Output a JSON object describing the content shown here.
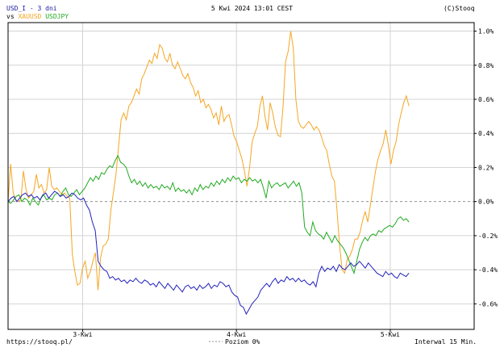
{
  "header": {
    "symbol": "USD_I - 3 dni",
    "vs_prefix": "vs",
    "compare1": "XAUUSD",
    "compare2": "USDJPY",
    "datetime": "5 Kwi 2024 13:01 CEST",
    "copyright": "(C)Stooq"
  },
  "footer": {
    "url": "https://stooq.pl/",
    "baseline_legend": "Poziom 0%",
    "interval": "Interwal 15 Min."
  },
  "colors": {
    "usd_i": "#2222bb",
    "xauusd": "#f5a623",
    "usdjpy": "#22aa22",
    "grid": "#d4d4d4",
    "baseline": "#909090"
  },
  "chart_data": {
    "type": "line",
    "xlabel": "",
    "ylabel": "",
    "x_ticks": [
      "3-Kwi",
      "4-Kwi",
      "5-Kwi"
    ],
    "y_ticks": [
      "1.0%",
      "0.8%",
      "0.6%",
      "0.4%",
      "0.2%",
      "0.0%",
      "-0.2%",
      "-0.4%",
      "-0.6%"
    ],
    "ylim": [
      -0.75,
      1.05
    ],
    "grid": true,
    "series": [
      {
        "name": "XAUUSD",
        "color": "#f5a623",
        "values": [
          0.0,
          0.22,
          0.05,
          0.01,
          0.0,
          0.01,
          0.18,
          0.07,
          0.02,
          0.04,
          0.06,
          0.16,
          0.08,
          0.1,
          0.05,
          0.07,
          0.2,
          0.09,
          0.07,
          0.08,
          0.06,
          0.04,
          0.05,
          0.03,
          0.02,
          -0.31,
          -0.41,
          -0.49,
          -0.48,
          -0.39,
          -0.35,
          -0.45,
          -0.41,
          -0.35,
          -0.3,
          -0.52,
          -0.33,
          -0.26,
          -0.25,
          -0.22,
          -0.05,
          0.05,
          0.16,
          0.32,
          0.48,
          0.52,
          0.48,
          0.56,
          0.58,
          0.62,
          0.66,
          0.63,
          0.72,
          0.75,
          0.79,
          0.83,
          0.81,
          0.87,
          0.84,
          0.92,
          0.9,
          0.84,
          0.82,
          0.87,
          0.8,
          0.78,
          0.82,
          0.78,
          0.74,
          0.72,
          0.75,
          0.7,
          0.67,
          0.62,
          0.65,
          0.58,
          0.6,
          0.55,
          0.57,
          0.54,
          0.49,
          0.52,
          0.45,
          0.56,
          0.47,
          0.5,
          0.51,
          0.45,
          0.38,
          0.35,
          0.3,
          0.25,
          0.18,
          0.09,
          0.2,
          0.35,
          0.4,
          0.44,
          0.56,
          0.62,
          0.5,
          0.42,
          0.58,
          0.52,
          0.44,
          0.39,
          0.38,
          0.55,
          0.82,
          0.88,
          1.0,
          0.9,
          0.6,
          0.47,
          0.44,
          0.43,
          0.45,
          0.47,
          0.45,
          0.42,
          0.44,
          0.42,
          0.38,
          0.33,
          0.3,
          0.22,
          0.15,
          0.12,
          -0.05,
          -0.25,
          -0.4,
          -0.42,
          -0.34,
          -0.32,
          -0.28,
          -0.22,
          -0.22,
          -0.18,
          -0.11,
          -0.06,
          -0.12,
          -0.02,
          0.08,
          0.18,
          0.25,
          0.3,
          0.34,
          0.42,
          0.33,
          0.22,
          0.3,
          0.35,
          0.45,
          0.52,
          0.58,
          0.62,
          0.56
        ]
      },
      {
        "name": "USDJPY",
        "color": "#22aa22",
        "values": [
          0.0,
          -0.01,
          0.01,
          0.03,
          0.04,
          0.0,
          0.02,
          0.01,
          -0.02,
          0.02,
          0.0,
          -0.02,
          0.02,
          0.04,
          0.01,
          0.02,
          0.01,
          0.04,
          0.05,
          0.03,
          0.06,
          0.08,
          0.04,
          0.03,
          0.05,
          0.07,
          0.04,
          0.06,
          0.08,
          0.11,
          0.14,
          0.12,
          0.15,
          0.13,
          0.17,
          0.16,
          0.19,
          0.21,
          0.2,
          0.24,
          0.27,
          0.23,
          0.22,
          0.2,
          0.15,
          0.11,
          0.13,
          0.1,
          0.12,
          0.09,
          0.11,
          0.08,
          0.1,
          0.08,
          0.09,
          0.07,
          0.1,
          0.08,
          0.09,
          0.07,
          0.11,
          0.06,
          0.08,
          0.06,
          0.07,
          0.05,
          0.07,
          0.04,
          0.08,
          0.06,
          0.1,
          0.07,
          0.09,
          0.08,
          0.11,
          0.09,
          0.12,
          0.1,
          0.13,
          0.11,
          0.14,
          0.12,
          0.15,
          0.13,
          0.14,
          0.11,
          0.13,
          0.12,
          0.14,
          0.12,
          0.13,
          0.11,
          0.13,
          0.08,
          0.02,
          0.12,
          0.08,
          0.1,
          0.11,
          0.09,
          0.1,
          0.11,
          0.08,
          0.1,
          0.12,
          0.09,
          0.11,
          0.05,
          -0.15,
          -0.18,
          -0.2,
          -0.12,
          -0.17,
          -0.19,
          -0.2,
          -0.22,
          -0.18,
          -0.21,
          -0.24,
          -0.2,
          -0.23,
          -0.25,
          -0.27,
          -0.3,
          -0.34,
          -0.38,
          -0.42,
          -0.35,
          -0.28,
          -0.24,
          -0.21,
          -0.23,
          -0.2,
          -0.19,
          -0.2,
          -0.17,
          -0.18,
          -0.16,
          -0.15,
          -0.14,
          -0.15,
          -0.13,
          -0.1,
          -0.09,
          -0.11,
          -0.1,
          -0.12
        ]
      },
      {
        "name": "USD_I",
        "color": "#2222bb",
        "values": [
          0.0,
          0.02,
          0.03,
          0.0,
          0.02,
          0.04,
          0.05,
          0.03,
          0.04,
          0.02,
          0.03,
          0.01,
          0.04,
          0.05,
          0.02,
          0.04,
          0.06,
          0.05,
          0.03,
          0.04,
          0.02,
          0.03,
          0.05,
          0.04,
          0.02,
          0.01,
          0.02,
          -0.02,
          -0.05,
          -0.12,
          -0.17,
          -0.35,
          -0.38,
          -0.4,
          -0.41,
          -0.45,
          -0.44,
          -0.46,
          -0.45,
          -0.47,
          -0.46,
          -0.48,
          -0.46,
          -0.47,
          -0.45,
          -0.47,
          -0.48,
          -0.46,
          -0.47,
          -0.49,
          -0.48,
          -0.5,
          -0.47,
          -0.49,
          -0.51,
          -0.48,
          -0.5,
          -0.52,
          -0.49,
          -0.51,
          -0.53,
          -0.5,
          -0.49,
          -0.51,
          -0.5,
          -0.52,
          -0.49,
          -0.51,
          -0.5,
          -0.48,
          -0.51,
          -0.49,
          -0.5,
          -0.47,
          -0.48,
          -0.5,
          -0.49,
          -0.53,
          -0.55,
          -0.56,
          -0.61,
          -0.62,
          -0.66,
          -0.63,
          -0.6,
          -0.58,
          -0.56,
          -0.52,
          -0.5,
          -0.48,
          -0.5,
          -0.47,
          -0.45,
          -0.48,
          -0.46,
          -0.47,
          -0.44,
          -0.46,
          -0.45,
          -0.47,
          -0.45,
          -0.47,
          -0.46,
          -0.48,
          -0.49,
          -0.47,
          -0.5,
          -0.42,
          -0.38,
          -0.41,
          -0.39,
          -0.4,
          -0.38,
          -0.41,
          -0.37,
          -0.39,
          -0.4,
          -0.38,
          -0.36,
          -0.38,
          -0.37,
          -0.35,
          -0.37,
          -0.39,
          -0.36,
          -0.38,
          -0.4,
          -0.42,
          -0.43,
          -0.44,
          -0.41,
          -0.43,
          -0.42,
          -0.44,
          -0.45,
          -0.42,
          -0.43,
          -0.44,
          -0.42
        ]
      }
    ]
  }
}
